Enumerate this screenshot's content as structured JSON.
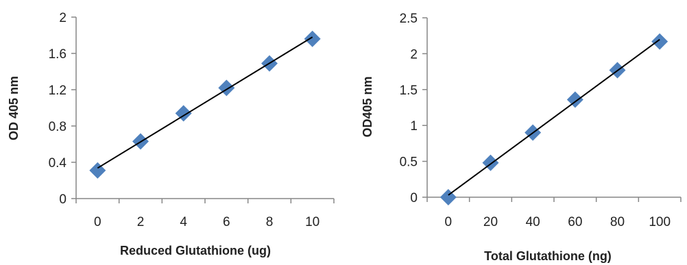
{
  "chart_data": [
    {
      "type": "scatter",
      "title": "",
      "xlabel": "Reduced Glutathione (ug)",
      "ylabel": "OD 405 nm",
      "x": [
        0,
        2,
        4,
        6,
        8,
        10
      ],
      "y": [
        0.31,
        0.63,
        0.94,
        1.22,
        1.49,
        1.76
      ],
      "xlim": [
        -1,
        11
      ],
      "ylim": [
        0,
        2
      ],
      "xticks": [
        "0",
        "2",
        "4",
        "6",
        "8",
        "10"
      ],
      "yticks": [
        "0",
        "0.4",
        "0.8",
        "1.2",
        "1.6",
        "2"
      ],
      "trendline": "linear",
      "grid": false,
      "legend": "none",
      "marker_color": "#4f81bd",
      "line_color": "#000000"
    },
    {
      "type": "scatter",
      "title": "",
      "xlabel": "Total Glutathione  (ng)",
      "ylabel": "OD405 nm",
      "x": [
        0,
        20,
        40,
        60,
        80,
        100
      ],
      "y": [
        0.0,
        0.48,
        0.9,
        1.36,
        1.77,
        2.17
      ],
      "xlim": [
        -10,
        110
      ],
      "ylim": [
        0,
        2.5
      ],
      "xticks": [
        "0",
        "20",
        "40",
        "60",
        "80",
        "100"
      ],
      "yticks": [
        "0",
        "0.5",
        "1",
        "1.5",
        "2",
        "2.5"
      ],
      "trendline": "linear",
      "grid": false,
      "legend": "none",
      "marker_color": "#4f81bd",
      "line_color": "#000000"
    }
  ]
}
